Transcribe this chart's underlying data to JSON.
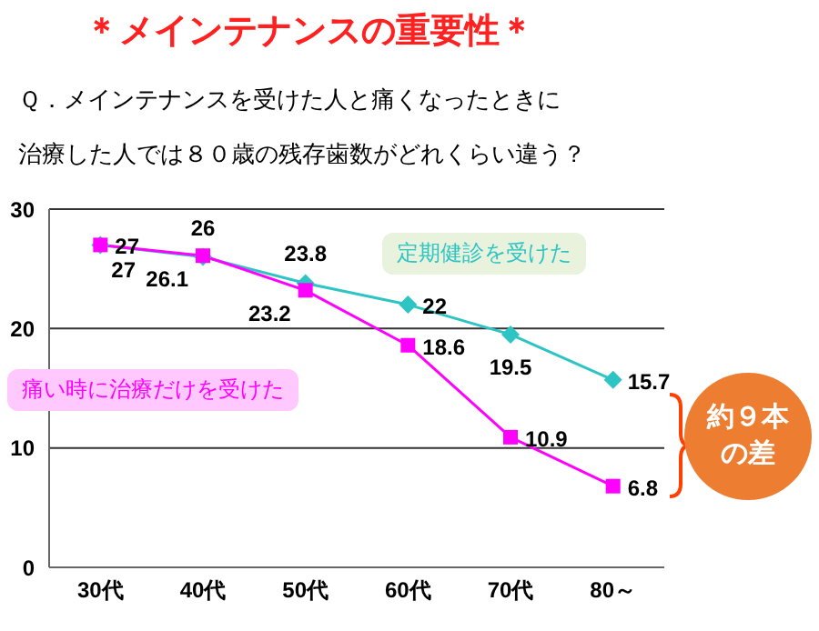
{
  "chart_data": {
    "type": "line",
    "title": "＊メインテナンスの重要性＊",
    "subtitle": "Ｑ．メインテナンスを受けた人と痛くなったときに",
    "categories": [
      "30代",
      "40代",
      "50代",
      "60代",
      "70代",
      "80～"
    ],
    "series": [
      {
        "name": "定期健診を受けた",
        "color": "#2ec4c4",
        "marker": "diamond",
        "values": [
          27,
          26,
          23.8,
          22,
          19.5,
          15.7
        ]
      },
      {
        "name": "痛い時に治療だけを受けた",
        "color": "#ff00ff",
        "marker": "square",
        "values": [
          27,
          26.1,
          23.2,
          18.6,
          10.9,
          6.8
        ]
      }
    ],
    "ylim": [
      0,
      30
    ],
    "yticks": [
      0,
      10,
      20,
      30
    ],
    "grid": "y",
    "data_labels": true,
    "annotations": [
      "治療した人では８０歳の残存歯数がどれくらい違う？",
      "約９本の差"
    ]
  }
}
